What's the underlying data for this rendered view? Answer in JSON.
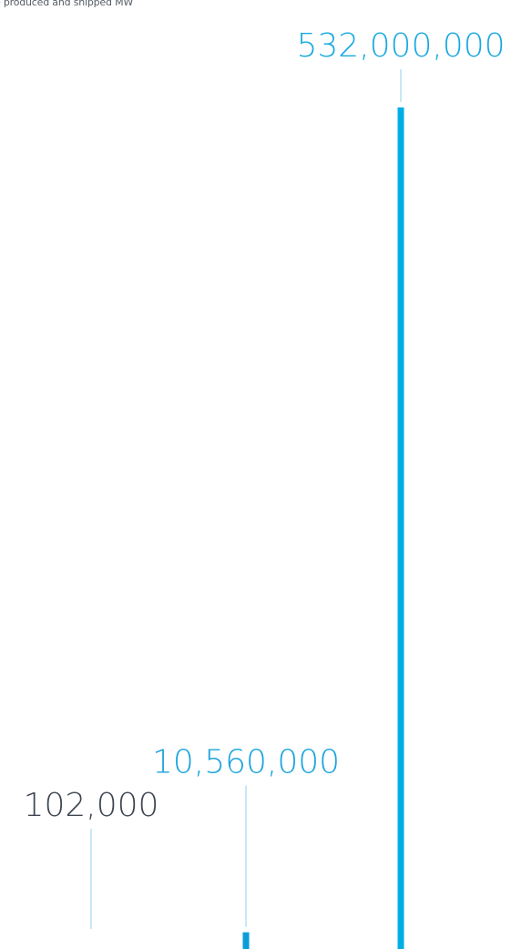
{
  "chart_data": {
    "type": "bar",
    "subtitle": "e produced and shipped MW",
    "categories": [
      "",
      "",
      ""
    ],
    "values": [
      102000,
      10560000,
      532000000
    ],
    "data_labels": [
      "102,000",
      "10,560,000",
      "532,000,000"
    ],
    "colors": [
      "#0a9ed8",
      "#0a9ed8",
      "#00aee6"
    ],
    "label_colors": [
      "#3d4652",
      "#1aa3dc",
      "#1aa9df"
    ],
    "leader_color": "#8fd0ec",
    "ylim": [
      0,
      532000000
    ],
    "grid": false,
    "legend": "none"
  }
}
